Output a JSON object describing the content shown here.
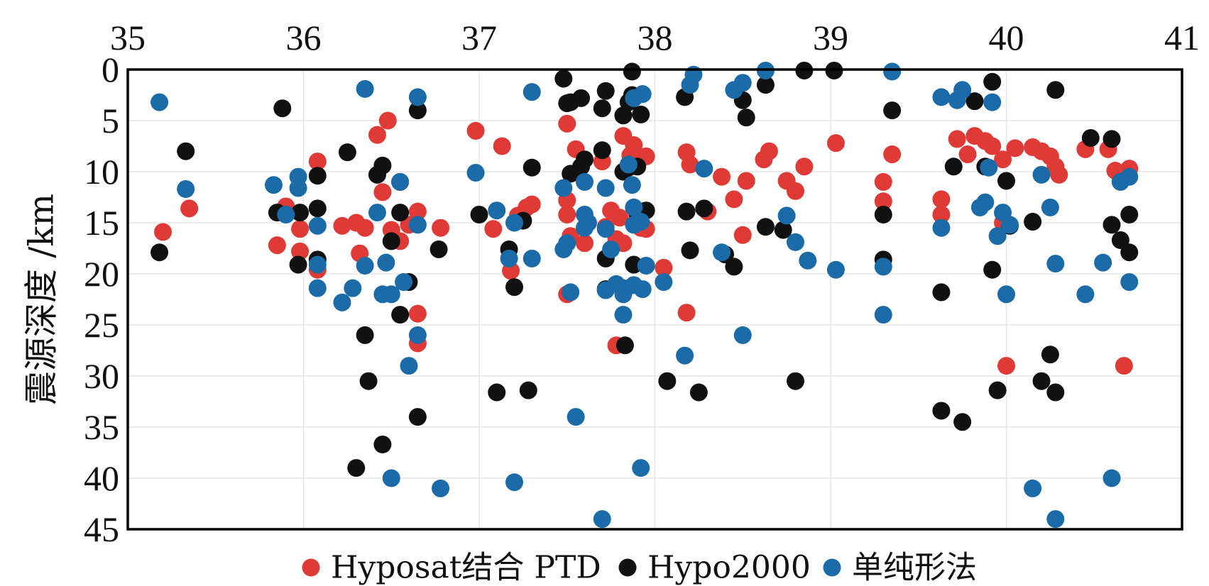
{
  "chart_data": {
    "type": "scatter",
    "title": "",
    "xlabel": "",
    "ylabel": "震源深度 /km",
    "xlim": [
      35,
      41
    ],
    "ylim": [
      0,
      45
    ],
    "y_inverted": true,
    "x_axis_position": "top",
    "x_ticks": [
      "35",
      "36",
      "37",
      "38",
      "39",
      "40",
      "41"
    ],
    "y_ticks": [
      "0",
      "5",
      "10",
      "15",
      "20",
      "25",
      "30",
      "35",
      "40",
      "45"
    ],
    "grid": true,
    "legend_position": "bottom",
    "series": [
      {
        "name": "Hyposat结合 PTD",
        "color": "#e03a36",
        "points": [
          [
            35.2,
            15.9
          ],
          [
            35.35,
            13.6
          ],
          [
            35.9,
            13.4
          ],
          [
            35.85,
            17.2
          ],
          [
            35.98,
            15.6
          ],
          [
            35.98,
            17.8
          ],
          [
            36.08,
            9.0
          ],
          [
            36.08,
            19.6
          ],
          [
            36.22,
            15.3
          ],
          [
            36.3,
            15.0
          ],
          [
            36.35,
            15.5
          ],
          [
            36.32,
            18.0
          ],
          [
            36.42,
            6.4
          ],
          [
            36.45,
            12.0
          ],
          [
            36.48,
            5.0
          ],
          [
            36.5,
            15.7
          ],
          [
            36.55,
            16.8
          ],
          [
            36.6,
            15.2
          ],
          [
            36.65,
            13.9
          ],
          [
            36.65,
            23.9
          ],
          [
            36.65,
            26.8
          ],
          [
            36.78,
            15.5
          ],
          [
            36.98,
            6.0
          ],
          [
            37.08,
            15.6
          ],
          [
            37.13,
            7.5
          ],
          [
            37.18,
            19.7
          ],
          [
            37.22,
            14.3
          ],
          [
            37.27,
            13.5
          ],
          [
            37.3,
            13.2
          ],
          [
            37.5,
            5.3
          ],
          [
            37.55,
            7.8
          ],
          [
            37.58,
            9.5
          ],
          [
            37.5,
            12.8
          ],
          [
            37.5,
            14.2
          ],
          [
            37.52,
            16.3
          ],
          [
            37.6,
            17.0
          ],
          [
            37.5,
            22.0
          ],
          [
            37.7,
            9.0
          ],
          [
            37.75,
            13.8
          ],
          [
            37.72,
            15.4
          ],
          [
            37.78,
            16.6
          ],
          [
            37.82,
            6.5
          ],
          [
            37.86,
            8.4
          ],
          [
            37.88,
            7.4
          ],
          [
            37.95,
            8.5
          ],
          [
            37.8,
            14.5
          ],
          [
            37.82,
            17.0
          ],
          [
            37.95,
            15.6
          ],
          [
            37.92,
            15.5
          ],
          [
            37.78,
            27.0
          ],
          [
            38.05,
            19.4
          ],
          [
            38.18,
            8.1
          ],
          [
            38.2,
            9.3
          ],
          [
            38.18,
            23.8
          ],
          [
            38.3,
            13.9
          ],
          [
            38.38,
            10.5
          ],
          [
            38.45,
            12.7
          ],
          [
            38.5,
            16.2
          ],
          [
            38.52,
            10.9
          ],
          [
            38.62,
            8.8
          ],
          [
            38.65,
            8.0
          ],
          [
            38.75,
            10.9
          ],
          [
            38.8,
            11.9
          ],
          [
            38.85,
            9.5
          ],
          [
            39.03,
            7.2
          ],
          [
            39.3,
            11.0
          ],
          [
            39.3,
            12.9
          ],
          [
            39.35,
            8.3
          ],
          [
            39.63,
            12.7
          ],
          [
            39.63,
            14.2
          ],
          [
            39.72,
            6.8
          ],
          [
            39.78,
            8.3
          ],
          [
            39.82,
            6.5
          ],
          [
            39.88,
            7.0
          ],
          [
            39.92,
            7.5
          ],
          [
            39.98,
            8.8
          ],
          [
            40.05,
            7.7
          ],
          [
            40.15,
            7.6
          ],
          [
            40.2,
            8.0
          ],
          [
            40.25,
            8.5
          ],
          [
            40.28,
            9.5
          ],
          [
            40.3,
            10.3
          ],
          [
            39.98,
            15.0
          ],
          [
            40.0,
            29.0
          ],
          [
            40.45,
            7.8
          ],
          [
            40.58,
            7.8
          ],
          [
            40.62,
            9.9
          ],
          [
            40.7,
            9.7
          ],
          [
            40.67,
            29.0
          ]
        ]
      },
      {
        "name": "Hypo2000",
        "color": "#111111",
        "points": [
          [
            35.18,
            17.9
          ],
          [
            35.33,
            8.0
          ],
          [
            35.88,
            3.8
          ],
          [
            35.85,
            14.0
          ],
          [
            35.98,
            14.0
          ],
          [
            35.97,
            19.1
          ],
          [
            36.08,
            10.4
          ],
          [
            36.08,
            13.6
          ],
          [
            36.08,
            18.6
          ],
          [
            36.25,
            8.1
          ],
          [
            36.35,
            26.0
          ],
          [
            36.37,
            30.5
          ],
          [
            36.42,
            10.3
          ],
          [
            36.45,
            9.4
          ],
          [
            36.5,
            16.8
          ],
          [
            36.55,
            14.0
          ],
          [
            36.55,
            11.0
          ],
          [
            36.55,
            24.0
          ],
          [
            36.6,
            20.8
          ],
          [
            36.65,
            4.0
          ],
          [
            36.65,
            34.0
          ],
          [
            36.77,
            17.6
          ],
          [
            36.45,
            36.7
          ],
          [
            36.3,
            39.0
          ],
          [
            37.0,
            14.2
          ],
          [
            37.1,
            31.6
          ],
          [
            37.17,
            17.6
          ],
          [
            37.2,
            21.3
          ],
          [
            37.25,
            14.8
          ],
          [
            37.3,
            9.6
          ],
          [
            37.28,
            31.4
          ],
          [
            37.48,
            0.9
          ],
          [
            37.52,
            3.2
          ],
          [
            37.5,
            3.3
          ],
          [
            37.52,
            10.2
          ],
          [
            37.58,
            2.8
          ],
          [
            37.6,
            8.8
          ],
          [
            37.58,
            9.5
          ],
          [
            37.7,
            3.8
          ],
          [
            37.7,
            7.9
          ],
          [
            37.72,
            2.1
          ],
          [
            37.72,
            18.5
          ],
          [
            37.72,
            21.5
          ],
          [
            37.82,
            4.5
          ],
          [
            37.85,
            3.2
          ],
          [
            37.87,
            2.5
          ],
          [
            37.87,
            0.2
          ],
          [
            37.82,
            10.0
          ],
          [
            37.85,
            9.6
          ],
          [
            37.9,
            9.5
          ],
          [
            37.88,
            19.1
          ],
          [
            37.92,
            4.4
          ],
          [
            37.95,
            13.8
          ],
          [
            37.9,
            14.1
          ],
          [
            37.83,
            27.0
          ],
          [
            38.07,
            30.5
          ],
          [
            38.17,
            2.7
          ],
          [
            38.2,
            17.7
          ],
          [
            38.18,
            13.9
          ],
          [
            38.25,
            31.6
          ],
          [
            38.28,
            13.6
          ],
          [
            38.4,
            18.1
          ],
          [
            38.45,
            19.3
          ],
          [
            38.5,
            3.0
          ],
          [
            38.52,
            4.7
          ],
          [
            38.63,
            1.5
          ],
          [
            38.63,
            15.4
          ],
          [
            38.73,
            15.7
          ],
          [
            38.8,
            30.5
          ],
          [
            38.85,
            0.1
          ],
          [
            39.02,
            0.1
          ],
          [
            39.3,
            14.2
          ],
          [
            39.3,
            18.6
          ],
          [
            39.35,
            4.0
          ],
          [
            39.63,
            21.8
          ],
          [
            39.63,
            33.4
          ],
          [
            39.7,
            9.5
          ],
          [
            39.75,
            34.5
          ],
          [
            39.82,
            3.1
          ],
          [
            39.88,
            9.5
          ],
          [
            39.92,
            1.2
          ],
          [
            39.92,
            19.6
          ],
          [
            39.95,
            31.4
          ],
          [
            40.0,
            10.9
          ],
          [
            40.02,
            15.3
          ],
          [
            40.15,
            14.9
          ],
          [
            40.2,
            30.5
          ],
          [
            40.25,
            27.9
          ],
          [
            40.28,
            31.6
          ],
          [
            40.28,
            2.0
          ],
          [
            40.48,
            6.7
          ],
          [
            40.6,
            6.8
          ],
          [
            40.6,
            15.2
          ],
          [
            40.65,
            16.7
          ],
          [
            40.7,
            14.2
          ],
          [
            40.7,
            17.9
          ]
        ]
      },
      {
        "name": "单纯形法",
        "color": "#1a6ba8",
        "points": [
          [
            35.18,
            3.2
          ],
          [
            35.33,
            11.7
          ],
          [
            35.83,
            11.3
          ],
          [
            35.9,
            14.2
          ],
          [
            35.97,
            10.5
          ],
          [
            35.97,
            11.6
          ],
          [
            36.08,
            15.3
          ],
          [
            36.08,
            19.1
          ],
          [
            36.08,
            21.4
          ],
          [
            36.22,
            22.8
          ],
          [
            36.28,
            21.4
          ],
          [
            36.35,
            1.9
          ],
          [
            36.35,
            19.2
          ],
          [
            36.42,
            14.0
          ],
          [
            36.45,
            22.0
          ],
          [
            36.47,
            18.9
          ],
          [
            36.5,
            22.0
          ],
          [
            36.5,
            40.0
          ],
          [
            36.55,
            11.0
          ],
          [
            36.57,
            20.8
          ],
          [
            36.6,
            29.0
          ],
          [
            36.65,
            2.7
          ],
          [
            36.65,
            15.2
          ],
          [
            36.65,
            26.0
          ],
          [
            36.78,
            41.0
          ],
          [
            36.98,
            10.1
          ],
          [
            37.1,
            13.8
          ],
          [
            37.17,
            18.5
          ],
          [
            37.2,
            15.0
          ],
          [
            37.2,
            40.4
          ],
          [
            37.3,
            2.2
          ],
          [
            37.3,
            18.5
          ],
          [
            37.48,
            11.6
          ],
          [
            37.48,
            17.6
          ],
          [
            37.5,
            17.0
          ],
          [
            37.52,
            21.8
          ],
          [
            37.55,
            34.0
          ],
          [
            37.6,
            11.0
          ],
          [
            37.6,
            14.2
          ],
          [
            37.6,
            15.5
          ],
          [
            37.62,
            15.0
          ],
          [
            37.7,
            44.0
          ],
          [
            37.72,
            11.6
          ],
          [
            37.72,
            15.6
          ],
          [
            37.75,
            17.6
          ],
          [
            37.72,
            21.6
          ],
          [
            37.78,
            21.0
          ],
          [
            37.82,
            21.4
          ],
          [
            37.82,
            22.0
          ],
          [
            37.82,
            24.0
          ],
          [
            37.85,
            9.3
          ],
          [
            37.87,
            11.3
          ],
          [
            37.88,
            13.5
          ],
          [
            37.88,
            15.2
          ],
          [
            37.88,
            2.8
          ],
          [
            37.88,
            21.1
          ],
          [
            37.93,
            2.4
          ],
          [
            37.95,
            19.2
          ],
          [
            37.93,
            21.5
          ],
          [
            37.92,
            39.0
          ],
          [
            37.92,
            14.9
          ],
          [
            38.05,
            20.8
          ],
          [
            38.17,
            28.0
          ],
          [
            38.2,
            1.5
          ],
          [
            38.22,
            0.5
          ],
          [
            38.28,
            9.7
          ],
          [
            38.38,
            17.9
          ],
          [
            38.45,
            2.0
          ],
          [
            38.5,
            1.3
          ],
          [
            38.5,
            26.0
          ],
          [
            38.63,
            0.1
          ],
          [
            38.75,
            14.3
          ],
          [
            38.8,
            16.9
          ],
          [
            38.87,
            18.7
          ],
          [
            39.03,
            19.6
          ],
          [
            39.3,
            19.3
          ],
          [
            39.3,
            24.0
          ],
          [
            39.35,
            0.2
          ],
          [
            39.63,
            2.7
          ],
          [
            39.63,
            15.5
          ],
          [
            39.72,
            3.0
          ],
          [
            39.75,
            2.0
          ],
          [
            39.85,
            13.5
          ],
          [
            39.88,
            13.0
          ],
          [
            39.9,
            9.6
          ],
          [
            39.92,
            3.2
          ],
          [
            39.95,
            16.3
          ],
          [
            39.98,
            14.0
          ],
          [
            40.0,
            22.0
          ],
          [
            40.02,
            15.2
          ],
          [
            40.15,
            41.0
          ],
          [
            40.2,
            10.3
          ],
          [
            40.25,
            13.5
          ],
          [
            40.28,
            19.0
          ],
          [
            40.28,
            44.0
          ],
          [
            40.45,
            22.0
          ],
          [
            40.55,
            18.9
          ],
          [
            40.6,
            40.0
          ],
          [
            40.65,
            11.0
          ],
          [
            40.7,
            10.5
          ],
          [
            40.7,
            20.8
          ]
        ]
      }
    ]
  }
}
